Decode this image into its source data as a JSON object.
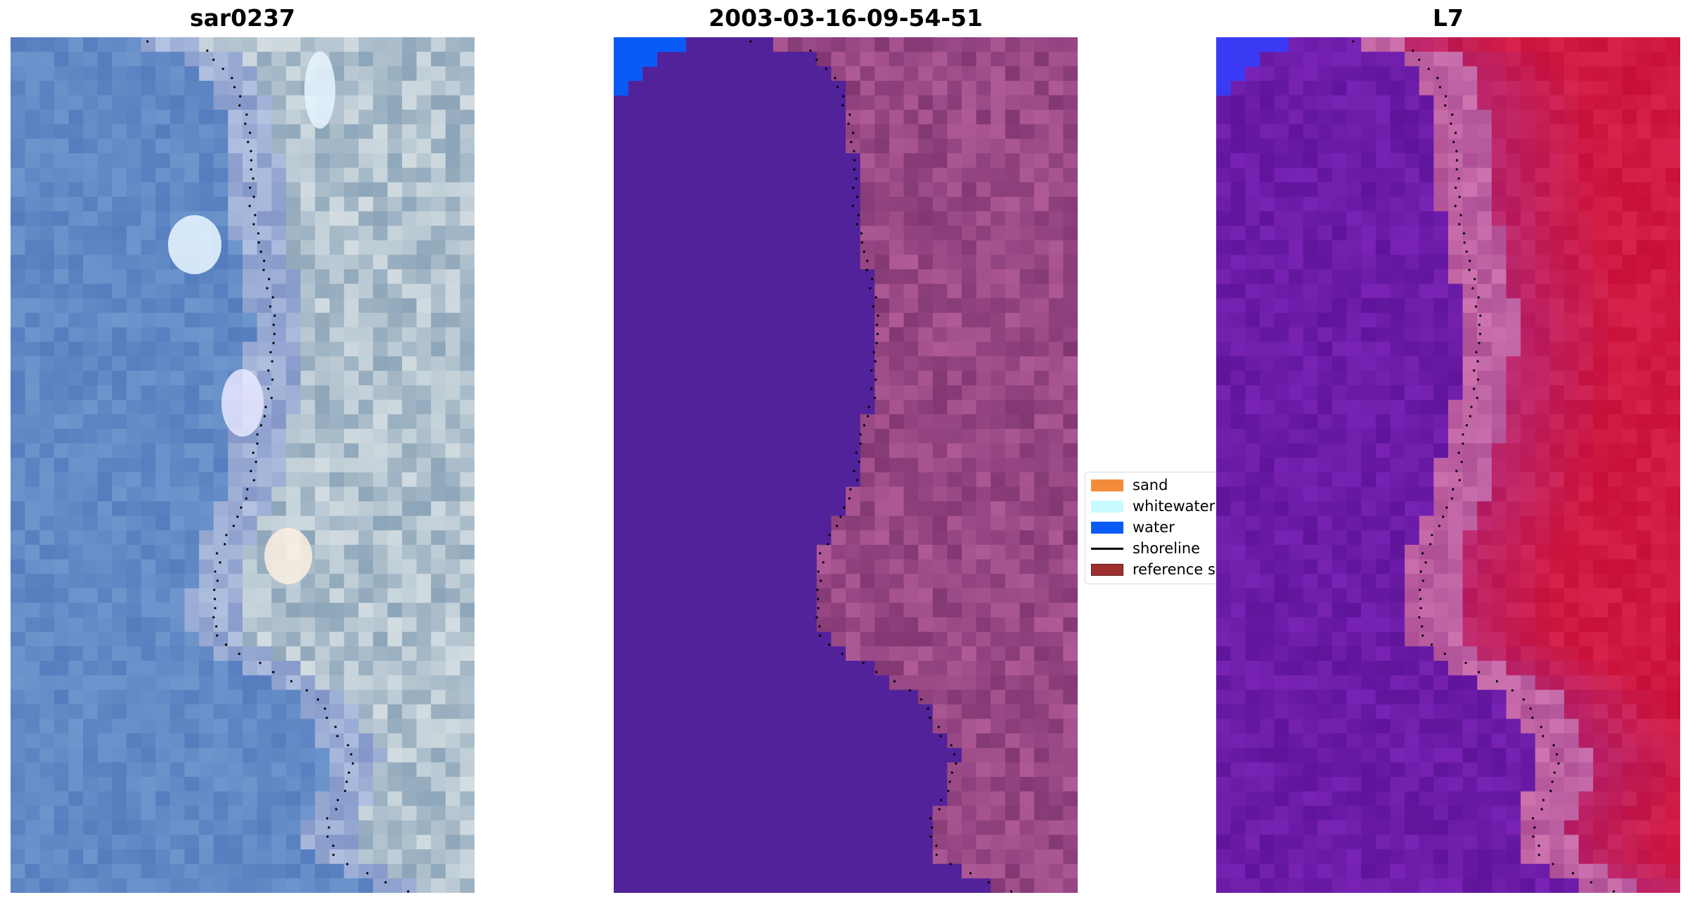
{
  "panels": [
    {
      "title": "sar0237",
      "kind": "rgb-image",
      "description_icon": "satellite-rgb-image"
    },
    {
      "title": "2003-03-16-09-54-51",
      "kind": "classified-image",
      "description_icon": "classification-overlay-image"
    },
    {
      "title": "L7",
      "kind": "index-image",
      "description_icon": "water-index-image"
    }
  ],
  "legend": {
    "items": [
      {
        "label": "sand",
        "type": "patch",
        "color": "#f28c3c"
      },
      {
        "label": "whitewater",
        "type": "patch",
        "color": "#c8faff"
      },
      {
        "label": "water",
        "type": "patch",
        "color": "#0a5af5"
      },
      {
        "label": "shoreline",
        "type": "line",
        "color": "#000000"
      },
      {
        "label": "reference shoreline",
        "type": "patch",
        "color": "#a0302f"
      }
    ]
  },
  "colors": {
    "water_class": "#52229a",
    "land_overlay": "#8a427a",
    "ocean_blue": "#5a84c0",
    "index_water": "#6a1aa0",
    "index_land": "#c8103a",
    "shoreline_dots": "#000000"
  }
}
